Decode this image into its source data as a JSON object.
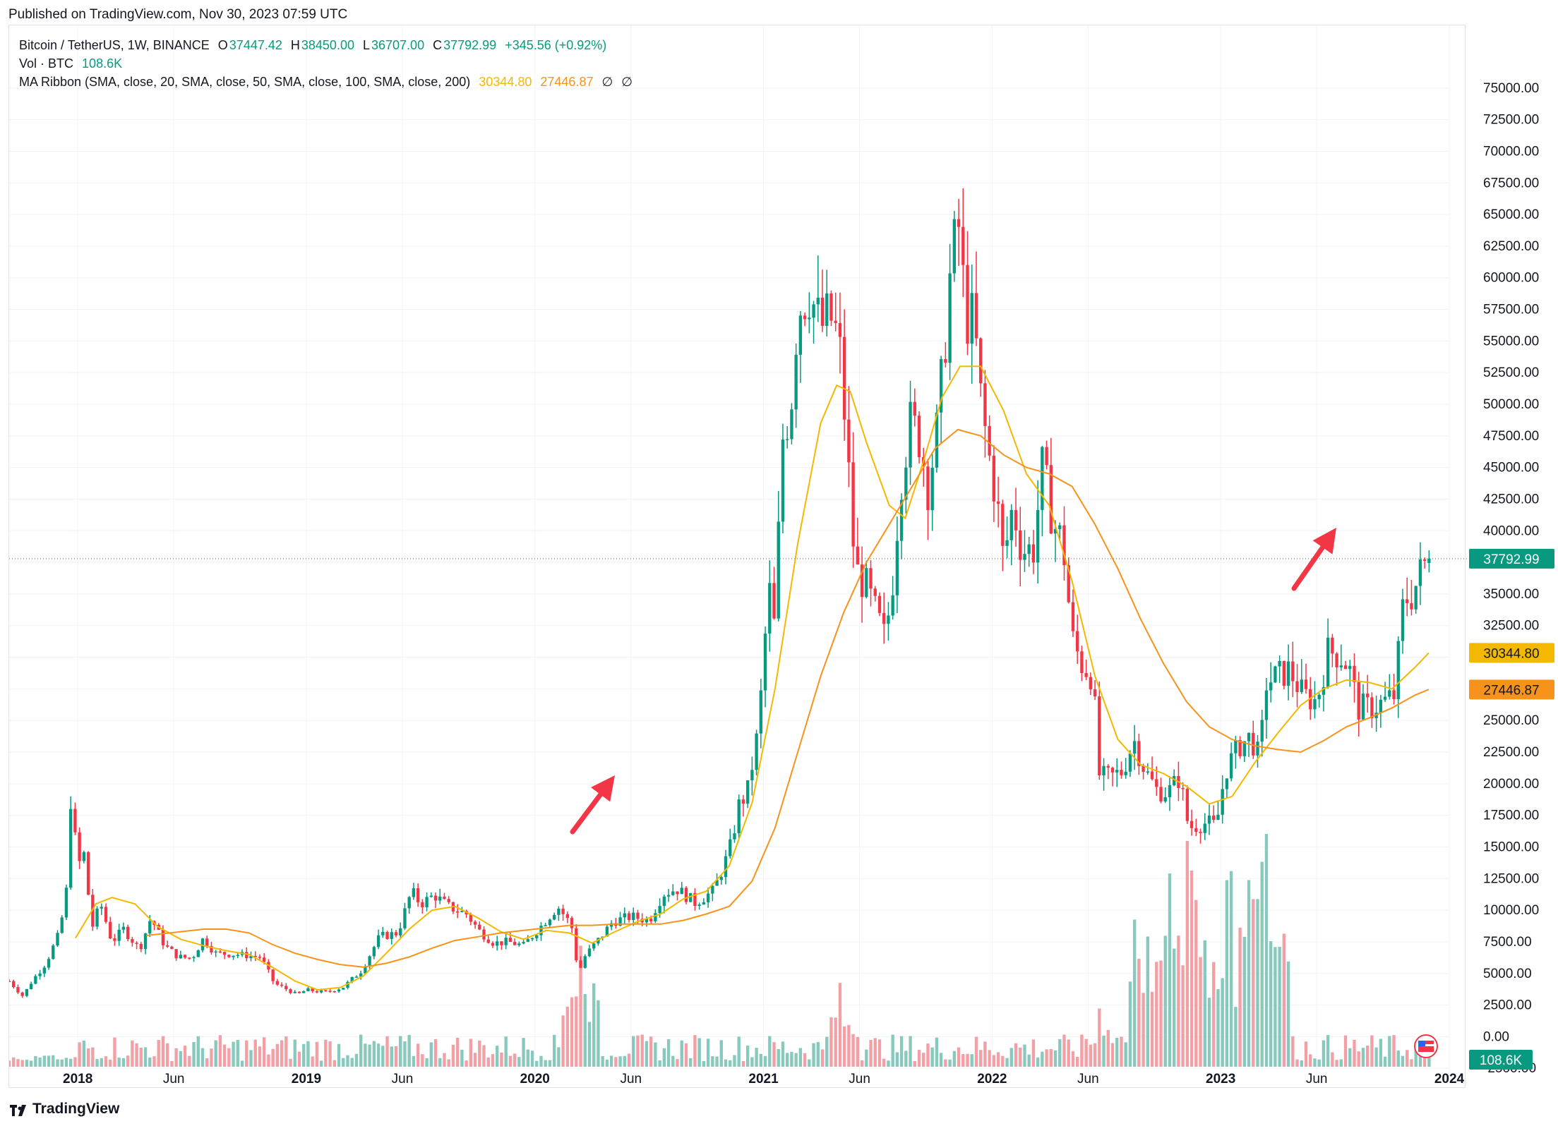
{
  "published": "Published on TradingView.com, Nov 30, 2023 07:59 UTC",
  "legend": {
    "symbol": "Bitcoin / TetherUS, 1W, BINANCE",
    "o_label": "O",
    "o_value": "37447.42",
    "h_label": "H",
    "h_value": "38450.00",
    "l_label": "L",
    "l_value": "36707.00",
    "c_label": "C",
    "c_value": "37792.99",
    "change": "+345.56 (+0.92%)",
    "vol_label": "Vol · BTC",
    "vol_value": "108.6K",
    "ma_label": "MA Ribbon (SMA, close, 20, SMA, close, 50, SMA, close, 100, SMA, close, 200)",
    "ma20_value": "30344.80",
    "ma50_value": "27446.87",
    "ma100_value": "∅",
    "ma200_value": "∅"
  },
  "footer": {
    "brand": "TradingView"
  },
  "chart_data": {
    "type": "candlestick",
    "symbol": "Bitcoin / TetherUS",
    "interval": "1W",
    "exchange": "BINANCE",
    "ylim": [
      -2600,
      77500
    ],
    "y_ticks": [
      "75000.00",
      "72500.00",
      "70000.00",
      "67500.00",
      "65000.00",
      "62500.00",
      "60000.00",
      "57500.00",
      "55000.00",
      "52500.00",
      "50000.00",
      "47500.00",
      "45000.00",
      "42500.00",
      "40000.00",
      "37500.00",
      "35000.00",
      "32500.00",
      "30000.00",
      "27500.00",
      "25000.00",
      "22500.00",
      "20000.00",
      "17500.00",
      "15000.00",
      "12500.00",
      "10000.00",
      "7500.00",
      "5000.00",
      "2500.00",
      "0.00",
      "-2500.00"
    ],
    "x_ticks": [
      {
        "label": "2018",
        "t": 2018.0,
        "bold": true
      },
      {
        "label": "Jun",
        "t": 2018.42,
        "bold": false
      },
      {
        "label": "2019",
        "t": 2019.0,
        "bold": true
      },
      {
        "label": "Jun",
        "t": 2019.42,
        "bold": false
      },
      {
        "label": "2020",
        "t": 2020.0,
        "bold": true
      },
      {
        "label": "Jun",
        "t": 2020.42,
        "bold": false
      },
      {
        "label": "2021",
        "t": 2021.0,
        "bold": true
      },
      {
        "label": "Jun",
        "t": 2021.42,
        "bold": false
      },
      {
        "label": "2022",
        "t": 2022.0,
        "bold": true
      },
      {
        "label": "Jun",
        "t": 2022.42,
        "bold": false
      },
      {
        "label": "2023",
        "t": 2023.0,
        "bold": true
      },
      {
        "label": "Jun",
        "t": 2023.42,
        "bold": false
      },
      {
        "label": "2024",
        "t": 2024.0,
        "bold": true
      }
    ],
    "time_range": [
      2017.7,
      2024.0
    ],
    "price_anchors": [
      [
        2017.7,
        4400
      ],
      [
        2017.76,
        3200
      ],
      [
        2017.8,
        4400
      ],
      [
        2017.86,
        5800
      ],
      [
        2017.92,
        8200
      ],
      [
        2017.95,
        11500
      ],
      [
        2017.97,
        19000
      ],
      [
        2018.0,
        13500
      ],
      [
        2018.03,
        14500
      ],
      [
        2018.06,
        8500
      ],
      [
        2018.1,
        10500
      ],
      [
        2018.15,
        7500
      ],
      [
        2018.2,
        8500
      ],
      [
        2018.27,
        6900
      ],
      [
        2018.32,
        9400
      ],
      [
        2018.38,
        7200
      ],
      [
        2018.44,
        6300
      ],
      [
        2018.5,
        6200
      ],
      [
        2018.55,
        7800
      ],
      [
        2018.6,
        6600
      ],
      [
        2018.7,
        6500
      ],
      [
        2018.8,
        6300
      ],
      [
        2018.86,
        4200
      ],
      [
        2018.92,
        3700
      ],
      [
        2018.96,
        3300
      ],
      [
        2019.0,
        3700
      ],
      [
        2019.08,
        3500
      ],
      [
        2019.16,
        3900
      ],
      [
        2019.24,
        5200
      ],
      [
        2019.32,
        7900
      ],
      [
        2019.4,
        8200
      ],
      [
        2019.46,
        11500
      ],
      [
        2019.5,
        10500
      ],
      [
        2019.56,
        11200
      ],
      [
        2019.62,
        10300
      ],
      [
        2019.7,
        9700
      ],
      [
        2019.76,
        8300
      ],
      [
        2019.82,
        7400
      ],
      [
        2019.88,
        7500
      ],
      [
        2019.95,
        7200
      ],
      [
        2020.02,
        8600
      ],
      [
        2020.1,
        10300
      ],
      [
        2020.16,
        8800
      ],
      [
        2020.19,
        5000
      ],
      [
        2020.22,
        6400
      ],
      [
        2020.28,
        7700
      ],
      [
        2020.34,
        9100
      ],
      [
        2020.42,
        9500
      ],
      [
        2020.5,
        9200
      ],
      [
        2020.56,
        11300
      ],
      [
        2020.62,
        11700
      ],
      [
        2020.7,
        10600
      ],
      [
        2020.78,
        11500
      ],
      [
        2020.83,
        13700
      ],
      [
        2020.86,
        15300
      ],
      [
        2020.89,
        18200
      ],
      [
        2020.93,
        19400
      ],
      [
        2020.97,
        23500
      ],
      [
        2021.0,
        29000
      ],
      [
        2021.02,
        36000
      ],
      [
        2021.05,
        32000
      ],
      [
        2021.08,
        47000
      ],
      [
        2021.12,
        50000
      ],
      [
        2021.15,
        57500
      ],
      [
        2021.2,
        59000
      ],
      [
        2021.25,
        56000
      ],
      [
        2021.29,
        57000
      ],
      [
        2021.33,
        55000
      ],
      [
        2021.36,
        48000
      ],
      [
        2021.4,
        37000
      ],
      [
        2021.45,
        35500
      ],
      [
        2021.49,
        33500
      ],
      [
        2021.53,
        31500
      ],
      [
        2021.56,
        35000
      ],
      [
        2021.6,
        44000
      ],
      [
        2021.64,
        48500
      ],
      [
        2021.68,
        47500
      ],
      [
        2021.72,
        43500
      ],
      [
        2021.76,
        48000
      ],
      [
        2021.79,
        54000
      ],
      [
        2021.82,
        61000
      ],
      [
        2021.86,
        64500
      ],
      [
        2021.88,
        57000
      ],
      [
        2021.92,
        56500
      ],
      [
        2021.95,
        50500
      ],
      [
        2021.98,
        46500
      ],
      [
        2022.02,
        42500
      ],
      [
        2022.05,
        37500
      ],
      [
        2022.09,
        42000
      ],
      [
        2022.13,
        38500
      ],
      [
        2022.18,
        38500
      ],
      [
        2022.22,
        45000
      ],
      [
        2022.27,
        40500
      ],
      [
        2022.31,
        39000
      ],
      [
        2022.35,
        31500
      ],
      [
        2022.39,
        29500
      ],
      [
        2022.44,
        28500
      ],
      [
        2022.47,
        20500
      ],
      [
        2022.52,
        20500
      ],
      [
        2022.57,
        21000
      ],
      [
        2022.62,
        23500
      ],
      [
        2022.67,
        21000
      ],
      [
        2022.72,
        19500
      ],
      [
        2022.77,
        19300
      ],
      [
        2022.82,
        20500
      ],
      [
        2022.86,
        16500
      ],
      [
        2022.9,
        16800
      ],
      [
        2022.94,
        16900
      ],
      [
        2022.98,
        16600
      ],
      [
        2023.02,
        21000
      ],
      [
        2023.08,
        23000
      ],
      [
        2023.13,
        23700
      ],
      [
        2023.17,
        22000
      ],
      [
        2023.2,
        28000
      ],
      [
        2023.25,
        28500
      ],
      [
        2023.3,
        29000
      ],
      [
        2023.36,
        27000
      ],
      [
        2023.42,
        26500
      ],
      [
        2023.47,
        30500
      ],
      [
        2023.52,
        30200
      ],
      [
        2023.56,
        29300
      ],
      [
        2023.6,
        26000
      ],
      [
        2023.66,
        26000
      ],
      [
        2023.72,
        26500
      ],
      [
        2023.76,
        27000
      ],
      [
        2023.8,
        34500
      ],
      [
        2023.84,
        35000
      ],
      [
        2023.88,
        37000
      ],
      [
        2023.91,
        37793
      ]
    ],
    "ma20_points": [
      [
        2017.99,
        7800
      ],
      [
        2018.08,
        10500
      ],
      [
        2018.15,
        11000
      ],
      [
        2018.25,
        10500
      ],
      [
        2018.35,
        8700
      ],
      [
        2018.45,
        7700
      ],
      [
        2018.55,
        7200
      ],
      [
        2018.65,
        6800
      ],
      [
        2018.75,
        6500
      ],
      [
        2018.85,
        5500
      ],
      [
        2018.95,
        4400
      ],
      [
        2019.05,
        3700
      ],
      [
        2019.15,
        3900
      ],
      [
        2019.25,
        4800
      ],
      [
        2019.35,
        6600
      ],
      [
        2019.45,
        8500
      ],
      [
        2019.55,
        10000
      ],
      [
        2019.65,
        10300
      ],
      [
        2019.75,
        9400
      ],
      [
        2019.85,
        8300
      ],
      [
        2019.95,
        7700
      ],
      [
        2020.05,
        8400
      ],
      [
        2020.15,
        8200
      ],
      [
        2020.25,
        7400
      ],
      [
        2020.35,
        8300
      ],
      [
        2020.45,
        9100
      ],
      [
        2020.55,
        9700
      ],
      [
        2020.65,
        10900
      ],
      [
        2020.75,
        11500
      ],
      [
        2020.85,
        13500
      ],
      [
        2020.95,
        18500
      ],
      [
        2021.05,
        27500
      ],
      [
        2021.15,
        39000
      ],
      [
        2021.25,
        48500
      ],
      [
        2021.32,
        51500
      ],
      [
        2021.38,
        51000
      ],
      [
        2021.45,
        47000
      ],
      [
        2021.55,
        42000
      ],
      [
        2021.62,
        41000
      ],
      [
        2021.7,
        45500
      ],
      [
        2021.78,
        50500
      ],
      [
        2021.86,
        53000
      ],
      [
        2021.95,
        53000
      ],
      [
        2022.05,
        49500
      ],
      [
        2022.15,
        44500
      ],
      [
        2022.25,
        42000
      ],
      [
        2022.35,
        36000
      ],
      [
        2022.45,
        28500
      ],
      [
        2022.55,
        23500
      ],
      [
        2022.65,
        21500
      ],
      [
        2022.75,
        20800
      ],
      [
        2022.85,
        19800
      ],
      [
        2022.95,
        18400
      ],
      [
        2023.05,
        19000
      ],
      [
        2023.15,
        21700
      ],
      [
        2023.25,
        24000
      ],
      [
        2023.35,
        26200
      ],
      [
        2023.45,
        27500
      ],
      [
        2023.55,
        28200
      ],
      [
        2023.65,
        28000
      ],
      [
        2023.75,
        27500
      ],
      [
        2023.85,
        29200
      ],
      [
        2023.91,
        30345
      ]
    ],
    "ma50_points": [
      [
        2018.3,
        8000
      ],
      [
        2018.45,
        8300
      ],
      [
        2018.55,
        8500
      ],
      [
        2018.65,
        8500
      ],
      [
        2018.75,
        8200
      ],
      [
        2018.85,
        7300
      ],
      [
        2018.95,
        6600
      ],
      [
        2019.05,
        6100
      ],
      [
        2019.15,
        5700
      ],
      [
        2019.25,
        5500
      ],
      [
        2019.35,
        5800
      ],
      [
        2019.45,
        6300
      ],
      [
        2019.55,
        7000
      ],
      [
        2019.65,
        7600
      ],
      [
        2019.75,
        7900
      ],
      [
        2019.85,
        8200
      ],
      [
        2019.95,
        8400
      ],
      [
        2020.05,
        8600
      ],
      [
        2020.15,
        8800
      ],
      [
        2020.25,
        8800
      ],
      [
        2020.35,
        8900
      ],
      [
        2020.45,
        8900
      ],
      [
        2020.55,
        8900
      ],
      [
        2020.65,
        9200
      ],
      [
        2020.75,
        9700
      ],
      [
        2020.85,
        10300
      ],
      [
        2020.95,
        12300
      ],
      [
        2021.05,
        16500
      ],
      [
        2021.15,
        22500
      ],
      [
        2021.25,
        28500
      ],
      [
        2021.35,
        33500
      ],
      [
        2021.45,
        37500
      ],
      [
        2021.55,
        40500
      ],
      [
        2021.65,
        43500
      ],
      [
        2021.75,
        46500
      ],
      [
        2021.85,
        48000
      ],
      [
        2021.95,
        47500
      ],
      [
        2022.05,
        46000
      ],
      [
        2022.15,
        45000
      ],
      [
        2022.25,
        44500
      ],
      [
        2022.35,
        43500
      ],
      [
        2022.45,
        40500
      ],
      [
        2022.55,
        37000
      ],
      [
        2022.65,
        33000
      ],
      [
        2022.75,
        29500
      ],
      [
        2022.85,
        26500
      ],
      [
        2022.95,
        24500
      ],
      [
        2023.05,
        23500
      ],
      [
        2023.15,
        23000
      ],
      [
        2023.25,
        22700
      ],
      [
        2023.35,
        22500
      ],
      [
        2023.45,
        23400
      ],
      [
        2023.55,
        24500
      ],
      [
        2023.65,
        25200
      ],
      [
        2023.75,
        26000
      ],
      [
        2023.85,
        27000
      ],
      [
        2023.91,
        27447
      ]
    ],
    "last_price": 37792.99,
    "price_label": "37792.99",
    "ma20_label": "30344.80",
    "ma50_label": "27446.87",
    "volume_label": "108.6K",
    "volume_spikes": [
      [
        2020.2,
        0.52
      ],
      [
        2021.34,
        0.36
      ],
      [
        2022.47,
        0.25
      ],
      [
        2022.78,
        0.83
      ],
      [
        2022.86,
        0.97
      ],
      [
        2023.15,
        0.72
      ],
      [
        2023.18,
        0.88
      ],
      [
        2023.2,
        1.0
      ]
    ],
    "colors": {
      "up": "#089981",
      "down": "#f23645",
      "up_vol": "#88c9bd",
      "down_vol": "#f2a0a6",
      "ma20": "#f5b800",
      "ma50": "#f7931a",
      "arrow": "#f23645"
    },
    "annotations": [
      "arrow-up-2020",
      "arrow-up-2023"
    ]
  }
}
